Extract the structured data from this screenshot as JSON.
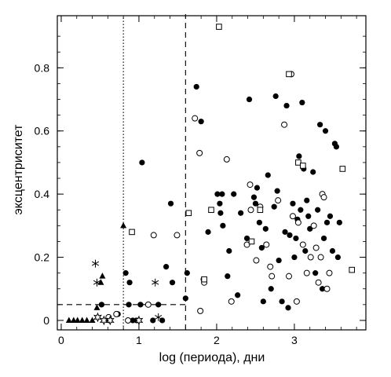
{
  "chart_data": {
    "type": "scatter",
    "title": "",
    "xlabel": "log (периода), дни",
    "ylabel": "эксцентриситет",
    "xlim": [
      -0.05,
      3.92
    ],
    "ylim": [
      -0.03,
      0.965
    ],
    "xticks": [
      0,
      1,
      2,
      3
    ],
    "xtick_labels": [
      "0",
      "1",
      "2",
      "3"
    ],
    "yticks": [
      0,
      0.2,
      0.4,
      0.6,
      0.8
    ],
    "ytick_labels": [
      "0",
      "0.2",
      "0.4",
      "0.6",
      "0.8"
    ],
    "grid": false,
    "legend": "none",
    "reference_lines": [
      {
        "style": "dotted",
        "x": 0.8
      },
      {
        "style": "dashed",
        "x": 1.6,
        "y_max": 0.97
      },
      {
        "style": "dashed",
        "y": 0.05,
        "x_max": 1.6
      }
    ],
    "series": [
      {
        "marker": "filled-circle",
        "points": [
          [
            0.52,
            0.05
          ],
          [
            0.62,
            0.0
          ],
          [
            0.73,
            0.02
          ],
          [
            0.83,
            0.15
          ],
          [
            0.87,
            0.05
          ],
          [
            0.88,
            0.12
          ],
          [
            0.92,
            0.0
          ],
          [
            0.97,
            0.0
          ],
          [
            1.02,
            0.05
          ],
          [
            1.04,
            0.5
          ],
          [
            1.18,
            0.0
          ],
          [
            1.25,
            0.05
          ],
          [
            1.3,
            0.0
          ],
          [
            1.35,
            0.17
          ],
          [
            1.41,
            0.37
          ],
          [
            1.43,
            0.12
          ],
          [
            1.6,
            0.07
          ],
          [
            1.62,
            0.15
          ],
          [
            1.74,
            0.74
          ],
          [
            1.8,
            0.63
          ],
          [
            1.83,
            0.13
          ],
          [
            1.89,
            0.28
          ],
          [
            2.01,
            0.4
          ],
          [
            2.04,
            0.37
          ],
          [
            2.05,
            0.34
          ],
          [
            2.07,
            0.4
          ],
          [
            2.08,
            0.3
          ],
          [
            2.14,
            0.14
          ],
          [
            2.16,
            0.22
          ],
          [
            2.22,
            0.4
          ],
          [
            2.27,
            0.08
          ],
          [
            2.31,
            0.34
          ],
          [
            2.39,
            0.26
          ],
          [
            2.42,
            0.7
          ],
          [
            2.48,
            0.39
          ],
          [
            2.5,
            0.37
          ],
          [
            2.52,
            0.42
          ],
          [
            2.55,
            0.31
          ],
          [
            2.58,
            0.23
          ],
          [
            2.6,
            0.06
          ],
          [
            2.63,
            0.29
          ],
          [
            2.66,
            0.46
          ],
          [
            2.7,
            0.1
          ],
          [
            2.74,
            0.36
          ],
          [
            2.76,
            0.71
          ],
          [
            2.78,
            0.41
          ],
          [
            2.8,
            0.19
          ],
          [
            2.84,
            0.06
          ],
          [
            2.88,
            0.28
          ],
          [
            2.9,
            0.68
          ],
          [
            2.92,
            0.04
          ],
          [
            2.94,
            0.27
          ],
          [
            2.98,
            0.37
          ],
          [
            3.0,
            0.2
          ],
          [
            3.02,
            0.26
          ],
          [
            3.04,
            0.32
          ],
          [
            3.06,
            0.52
          ],
          [
            3.08,
            0.35
          ],
          [
            3.1,
            0.69
          ],
          [
            3.12,
            0.48
          ],
          [
            3.14,
            0.22
          ],
          [
            3.16,
            0.38
          ],
          [
            3.18,
            0.33
          ],
          [
            3.2,
            0.29
          ],
          [
            3.24,
            0.47
          ],
          [
            3.27,
            0.15
          ],
          [
            3.3,
            0.35
          ],
          [
            3.33,
            0.62
          ],
          [
            3.36,
            0.1
          ],
          [
            3.38,
            0.26
          ],
          [
            3.4,
            0.6
          ],
          [
            3.42,
            0.31
          ],
          [
            3.46,
            0.33
          ],
          [
            3.49,
            0.22
          ],
          [
            3.52,
            0.56
          ],
          [
            3.54,
            0.55
          ],
          [
            3.56,
            0.2
          ],
          [
            3.58,
            0.31
          ]
        ]
      },
      {
        "marker": "open-circle",
        "points": [
          [
            0.61,
            0.01
          ],
          [
            0.71,
            0.02
          ],
          [
            0.86,
            0.0
          ],
          [
            1.12,
            0.05
          ],
          [
            1.19,
            0.27
          ],
          [
            1.49,
            0.27
          ],
          [
            1.72,
            0.64
          ],
          [
            1.78,
            0.53
          ],
          [
            1.79,
            0.03
          ],
          [
            1.84,
            0.12
          ],
          [
            2.13,
            0.51
          ],
          [
            2.19,
            0.06
          ],
          [
            2.39,
            0.24
          ],
          [
            2.43,
            0.43
          ],
          [
            2.44,
            0.35
          ],
          [
            2.51,
            0.19
          ],
          [
            2.56,
            0.36
          ],
          [
            2.64,
            0.24
          ],
          [
            2.69,
            0.17
          ],
          [
            2.71,
            0.14
          ],
          [
            2.79,
            0.38
          ],
          [
            2.87,
            0.62
          ],
          [
            2.93,
            0.14
          ],
          [
            2.96,
            0.78
          ],
          [
            2.98,
            0.33
          ],
          [
            3.03,
            0.06
          ],
          [
            3.05,
            0.31
          ],
          [
            3.11,
            0.24
          ],
          [
            3.16,
            0.15
          ],
          [
            3.21,
            0.2
          ],
          [
            3.25,
            0.3
          ],
          [
            3.28,
            0.23
          ],
          [
            3.31,
            0.12
          ],
          [
            3.34,
            0.2
          ],
          [
            3.36,
            0.4
          ],
          [
            3.38,
            0.39
          ],
          [
            3.42,
            0.1
          ],
          [
            3.45,
            0.15
          ]
        ]
      },
      {
        "marker": "open-square",
        "points": [
          [
            0.91,
            0.28
          ],
          [
            1.64,
            0.34
          ],
          [
            1.84,
            0.13
          ],
          [
            1.93,
            0.35
          ],
          [
            2.03,
            0.93
          ],
          [
            2.45,
            0.25
          ],
          [
            2.56,
            0.35
          ],
          [
            2.93,
            0.78
          ],
          [
            3.05,
            0.5
          ],
          [
            3.11,
            0.49
          ],
          [
            3.62,
            0.48
          ],
          [
            3.74,
            0.16
          ]
        ]
      },
      {
        "marker": "filled-triangle",
        "points": [
          [
            0.1,
            0.0
          ],
          [
            0.16,
            0.0
          ],
          [
            0.21,
            0.0
          ],
          [
            0.27,
            0.0
          ],
          [
            0.33,
            0.0
          ],
          [
            0.4,
            0.0
          ],
          [
            0.46,
            0.04
          ],
          [
            0.51,
            0.12
          ],
          [
            0.53,
            0.14
          ],
          [
            0.8,
            0.3
          ]
        ]
      },
      {
        "marker": "asterisk",
        "points": [
          [
            0.44,
            0.18
          ],
          [
            0.46,
            0.12
          ],
          [
            1.21,
            0.12
          ],
          [
            1.25,
            0.01
          ]
        ]
      },
      {
        "marker": "star",
        "points": [
          [
            0.47,
            0.01
          ],
          [
            0.55,
            0.0
          ],
          [
            0.63,
            0.0
          ],
          [
            1.0,
            0.0
          ]
        ]
      }
    ]
  }
}
